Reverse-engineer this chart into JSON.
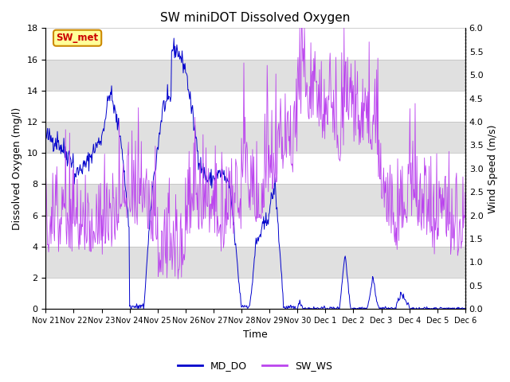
{
  "title": "SW miniDOT Dissolved Oxygen",
  "xlabel": "Time",
  "ylabel_left": "Dissolved Oxygen (mg/l)",
  "ylabel_right": "Wind Speed (m/s)",
  "ylim_left": [
    0,
    18
  ],
  "ylim_right": [
    0,
    6
  ],
  "yticks_left": [
    0,
    2,
    4,
    6,
    8,
    10,
    12,
    14,
    16,
    18
  ],
  "yticks_right": [
    0.0,
    0.5,
    1.0,
    1.5,
    2.0,
    2.5,
    3.0,
    3.5,
    4.0,
    4.5,
    5.0,
    5.5,
    6.0
  ],
  "xtick_labels": [
    "Nov 21",
    "Nov 22",
    "Nov 23",
    "Nov 24",
    "Nov 25",
    "Nov 26",
    "Nov 27",
    "Nov 28",
    "Nov 29",
    "Nov 30",
    "Dec 1",
    "Dec 2",
    "Dec 3",
    "Dec 4",
    "Dec 5",
    "Dec 6"
  ],
  "MD_DO_color": "#0000cc",
  "SW_WS_color": "#bb44ee",
  "bg_color": "#ffffff",
  "stripe_color": "#e0e0e0",
  "legend_label_DO": "MD_DO",
  "legend_label_WS": "SW_WS",
  "annotation_text": "SW_met",
  "annotation_color": "#cc0000",
  "annotation_bg": "#ffff99",
  "annotation_border": "#cc8800",
  "figsize": [
    6.4,
    4.8
  ],
  "dpi": 100
}
